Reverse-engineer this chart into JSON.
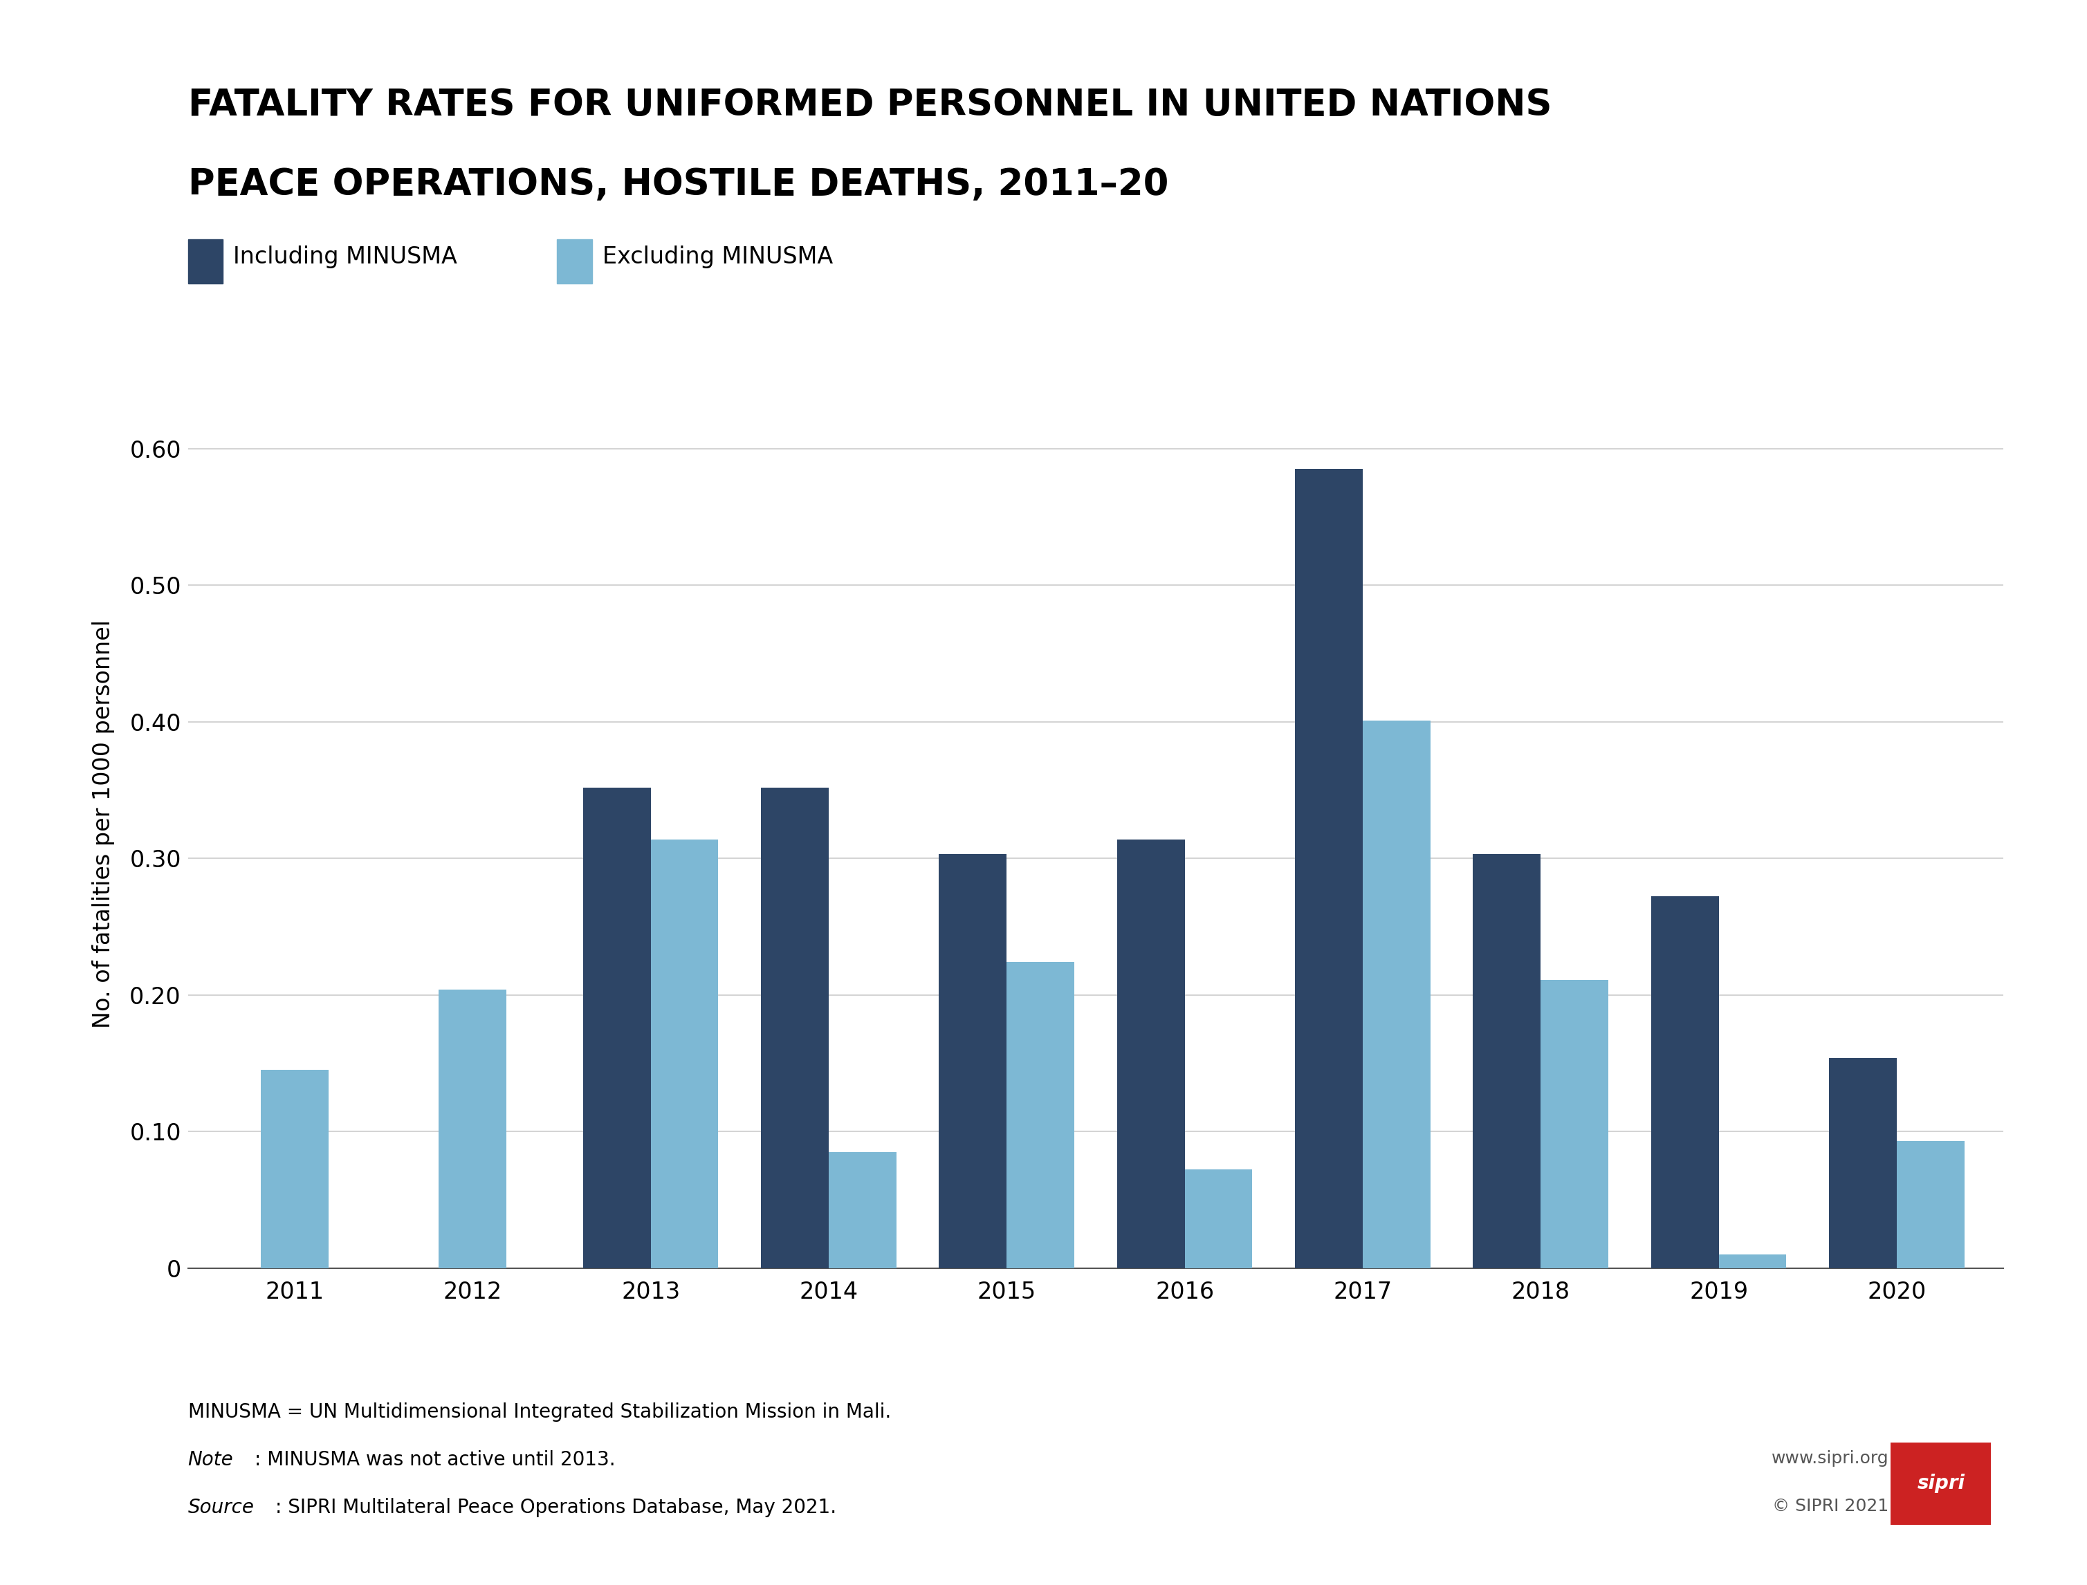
{
  "title_line1": "FATALITY RATES FOR UNIFORMED PERSONNEL IN UNITED NATIONS",
  "title_line2": "PEACE OPERATIONS, HOSTILE DEATHS, 2011–20",
  "ylabel": "No. of fatalities per 1000 personnel",
  "years": [
    2011,
    2012,
    2013,
    2014,
    2015,
    2016,
    2017,
    2018,
    2019,
    2020
  ],
  "including_minusma": [
    null,
    null,
    0.352,
    0.352,
    0.303,
    0.314,
    0.585,
    0.303,
    0.272,
    0.154
  ],
  "excluding_minusma": [
    0.145,
    0.204,
    0.314,
    0.085,
    0.224,
    0.072,
    0.401,
    0.211,
    0.01,
    0.093
  ],
  "color_including": "#2d4566",
  "color_excluding": "#7db8d4",
  "ylim": [
    0,
    0.65
  ],
  "yticks": [
    0,
    0.1,
    0.2,
    0.3,
    0.4,
    0.5,
    0.6
  ],
  "ytick_labels": [
    "0",
    "0.10",
    "0.20",
    "0.30",
    "0.40",
    "0.50",
    "0.60"
  ],
  "legend_including": "Including MINUSMA",
  "legend_excluding": "Excluding MINUSMA",
  "footnote1": "MINUSMA = UN Multidimensional Integrated Stabilization Mission in Mali.",
  "footnote2_label": "Note",
  "footnote2_text": ": MINUSMA was not active until 2013.",
  "footnote3_label": "Source",
  "footnote3_text": ": SIPRI Multilateral Peace Operations Database, May 2021.",
  "sipri_text1": "www.sipri.org",
  "sipri_text2": "© SIPRI 2021",
  "background_color": "#ffffff",
  "bar_width": 0.38
}
